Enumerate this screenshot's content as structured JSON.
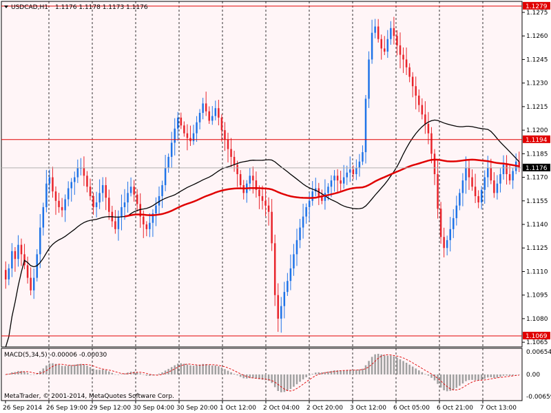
{
  "header": {
    "symbol_label": "USDCAD,H1",
    "ohlc_label": "1.1176 1.1178 1.1173 1.1176"
  },
  "macd": {
    "label": "MACD(5,34,5) -0.00006 -0.00030",
    "scale_labels": [
      "0.00654",
      "0.00",
      "-0.00659"
    ]
  },
  "footer": {
    "copyright": "MetaTrader, © 2001-2014, MetaQuotes Software Corp."
  },
  "colors": {
    "background": "#fff5f7",
    "bull": "#1e73e8",
    "bear": "#e8232a",
    "ma_fast": "#000000",
    "ma_slow": "#e00000",
    "hline": "#e00000"
  },
  "chart_data": {
    "type": "candlestick",
    "symbol": "USDCAD",
    "timeframe": "H1",
    "ylim": [
      1.1062,
      1.1282
    ],
    "y_ticks": [
      "1.1275",
      "1.1260",
      "1.1245",
      "1.1230",
      "1.1215",
      "1.1200",
      "1.1185",
      "1.1170",
      "1.1155",
      "1.1140",
      "1.1125",
      "1.1110",
      "1.1095",
      "1.1080",
      "1.1065"
    ],
    "x_ticks": [
      "26 Sep 2014",
      "26 Sep 19:00",
      "29 Sep 12:00",
      "30 Sep 04:00",
      "30 Sep 20:00",
      "1 Oct 12:00",
      "2 Oct 04:00",
      "2 Oct 20:00",
      "3 Oct 12:00",
      "6 Oct 05:00",
      "6 Oct 21:00",
      "7 Oct 13:00"
    ],
    "horizontal_lines": [
      {
        "value": 1.1279,
        "label": "1.1279"
      },
      {
        "value": 1.1194,
        "label": "1.1194"
      },
      {
        "value": 1.1069,
        "label": "1.1069"
      }
    ],
    "current_price": {
      "value": 1.1176,
      "label": "1.1176"
    },
    "closes": [
      1.1105,
      1.1112,
      1.1123,
      1.1118,
      1.1127,
      1.1121,
      1.1114,
      1.1106,
      1.1098,
      1.1106,
      1.1121,
      1.1138,
      1.1151,
      1.1166,
      1.117,
      1.1161,
      1.1155,
      1.1151,
      1.1149,
      1.1156,
      1.1163,
      1.1167,
      1.117,
      1.1176,
      1.1176,
      1.1171,
      1.1164,
      1.1158,
      1.1151,
      1.1154,
      1.116,
      1.1165,
      1.1157,
      1.1148,
      1.1142,
      1.1137,
      1.1145,
      1.1151,
      1.1154,
      1.116,
      1.1164,
      1.1159,
      1.1153,
      1.1145,
      1.114,
      1.1137,
      1.1141,
      1.1147,
      1.1152,
      1.1158,
      1.1165,
      1.1176,
      1.1183,
      1.1192,
      1.1201,
      1.1208,
      1.1203,
      1.1198,
      1.1195,
      1.1193,
      1.1198,
      1.1205,
      1.1211,
      1.1217,
      1.1212,
      1.1206,
      1.1209,
      1.1214,
      1.1208,
      1.12,
      1.1194,
      1.1188,
      1.1183,
      1.1178,
      1.1172,
      1.1165,
      1.116,
      1.1166,
      1.1171,
      1.1168,
      1.1162,
      1.1158,
      1.1155,
      1.1152,
      1.1148,
      1.1128,
      1.1095,
      1.108,
      1.1088,
      1.1097,
      1.1104,
      1.1112,
      1.1121,
      1.113,
      1.1138,
      1.1145,
      1.1151,
      1.1155,
      1.1161,
      1.1163,
      1.1158,
      1.1155,
      1.116,
      1.1164,
      1.1168,
      1.1171,
      1.1168,
      1.1166,
      1.117,
      1.1173,
      1.1175,
      1.1172,
      1.1176,
      1.118,
      1.1186,
      1.122,
      1.1245,
      1.1262,
      1.1266,
      1.1258,
      1.1252,
      1.125,
      1.1258,
      1.1265,
      1.126,
      1.1254,
      1.1248,
      1.1245,
      1.124,
      1.1234,
      1.1228,
      1.1222,
      1.1216,
      1.121,
      1.1204,
      1.1198,
      1.1185,
      1.1172,
      1.115,
      1.1132,
      1.1125,
      1.113,
      1.1137,
      1.1144,
      1.1152,
      1.116,
      1.1168,
      1.1176,
      1.117,
      1.1164,
      1.1158,
      1.1154,
      1.1162,
      1.117,
      1.1176,
      1.1168,
      1.116,
      1.1166,
      1.1172,
      1.1178,
      1.1172,
      1.1168,
      1.1174,
      1.118,
      1.1176
    ],
    "ma_fast": {
      "name": "",
      "color": "#000000"
    },
    "ma_slow": {
      "name": "",
      "color": "#e00000"
    }
  }
}
